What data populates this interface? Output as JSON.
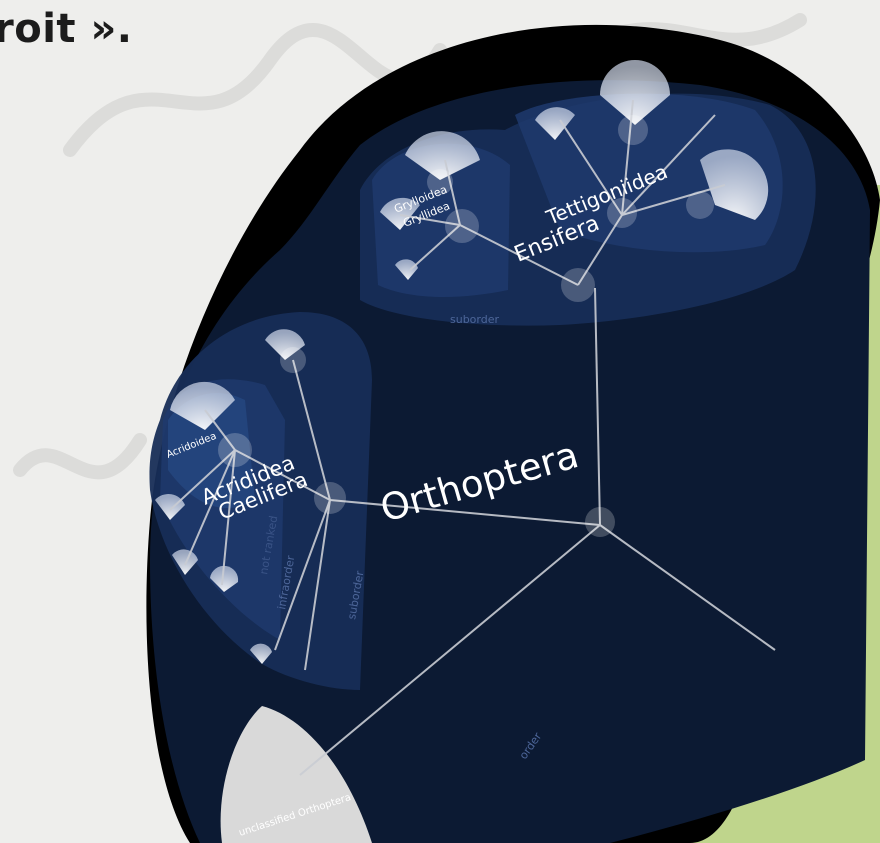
{
  "header": {
    "text": "roit »."
  },
  "tree": {
    "root": "Orthoptera",
    "suborders": [
      {
        "name": "Caelifera",
        "infraorder": "Acrididea",
        "superfamily": "Acridoidea"
      },
      {
        "name": "Ensifera",
        "infraorders": [
          "Gryllidea",
          "Tettigoniidea"
        ],
        "superfamily": "Grylloidea"
      }
    ],
    "unclassified": "unclassified Orthoptera"
  },
  "rank_labels": {
    "suborder": "suborder",
    "infraorder": "infraorder",
    "order": "order",
    "faded": "not ranked"
  },
  "colors": {
    "background": "#eeeeec",
    "blob": "#000000",
    "panel": "#0c1a33",
    "clade": "#1f3a6d",
    "branch": "#c9ccd3",
    "green": "#bfd58c",
    "label": "#ffffff"
  }
}
